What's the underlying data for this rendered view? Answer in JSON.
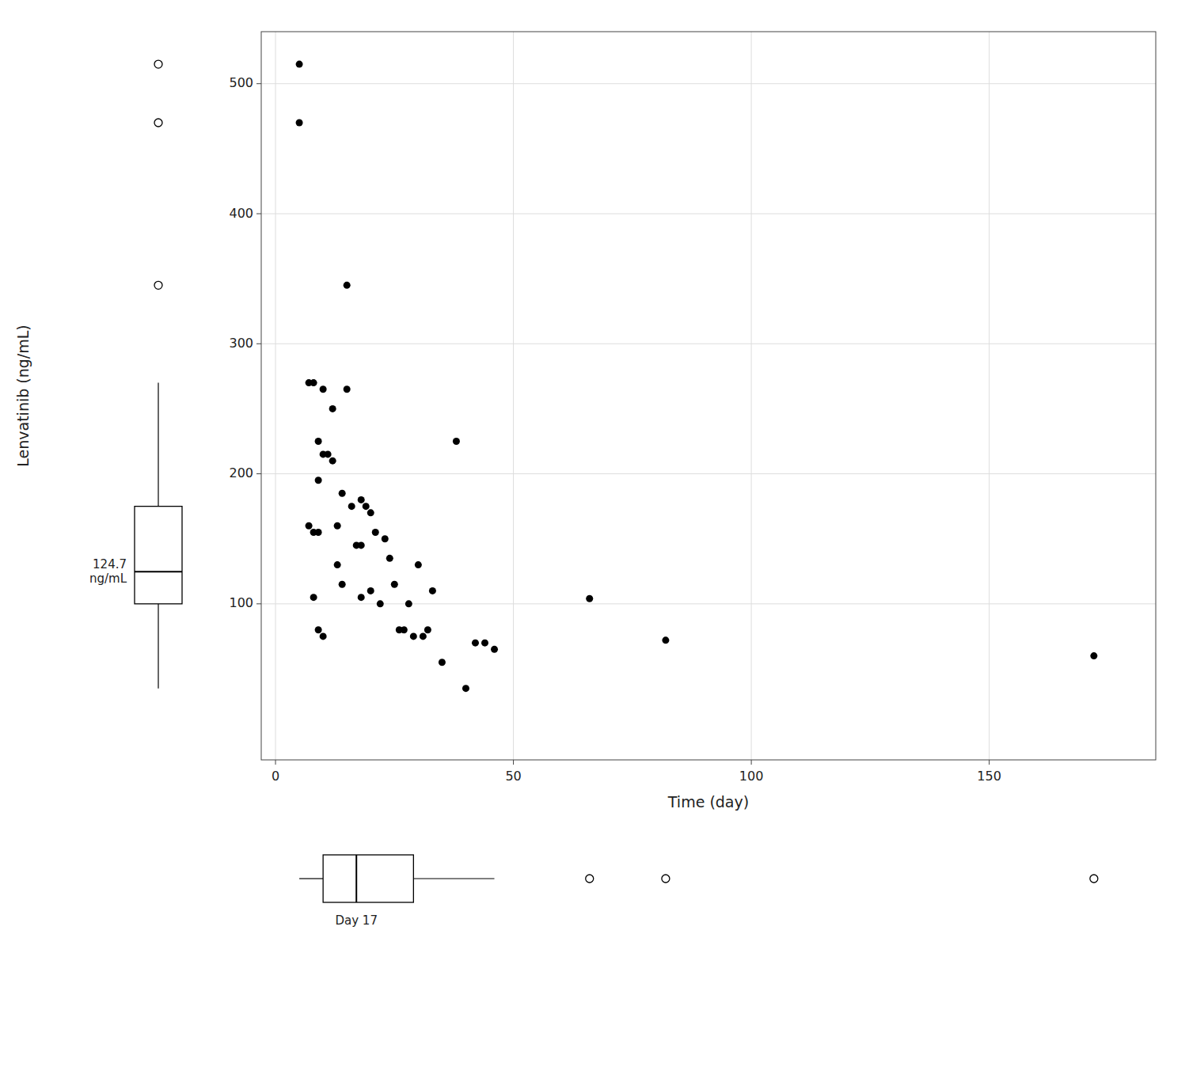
{
  "chart_data": {
    "type": "scatter",
    "xlabel": "Time (day)",
    "ylabel": "Lenvatinib (ng/mL)",
    "x": [
      5,
      5,
      7,
      7,
      8,
      8,
      8,
      9,
      9,
      9,
      9,
      10,
      10,
      10,
      11,
      12,
      12,
      13,
      13,
      14,
      14,
      15,
      15,
      16,
      17,
      18,
      18,
      18,
      19,
      20,
      20,
      21,
      22,
      23,
      24,
      25,
      26,
      27,
      28,
      29,
      30,
      31,
      32,
      33,
      35,
      38,
      40,
      42,
      44,
      46,
      66,
      82,
      172
    ],
    "values": [
      515,
      470,
      270,
      160,
      270,
      155,
      105,
      225,
      195,
      155,
      80,
      265,
      215,
      75,
      215,
      250,
      210,
      160,
      130,
      185,
      115,
      345,
      265,
      175,
      145,
      180,
      145,
      105,
      175,
      170,
      110,
      155,
      100,
      150,
      135,
      115,
      80,
      80,
      100,
      75,
      130,
      75,
      80,
      110,
      55,
      225,
      35,
      70,
      70,
      65,
      104,
      72,
      60
    ],
    "color": "black",
    "xlim": [
      -3,
      185
    ],
    "ylim": [
      -20,
      540
    ],
    "xticks": [
      0,
      50,
      100,
      150
    ],
    "yticks": [
      100,
      200,
      300,
      400,
      500
    ],
    "grid": true,
    "y_box": {
      "q1": 100,
      "median": 124.7,
      "q3": 175,
      "whisker_low": 35,
      "whisker_high": 270,
      "outliers": [
        345,
        470,
        515
      ],
      "label_lines": [
        "124.7",
        "ng/mL"
      ]
    },
    "x_box": {
      "q1": 10,
      "median": 17,
      "q3": 29,
      "whisker_low": 5,
      "whisker_high": 46,
      "outliers": [
        66,
        82,
        172
      ],
      "label": "Day 17"
    }
  }
}
